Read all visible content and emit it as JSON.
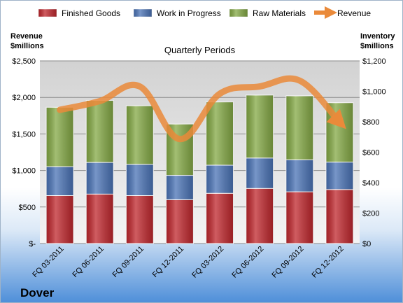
{
  "chart_data": {
    "type": "bar",
    "stacked": true,
    "company": "Dover",
    "subtitle": "Quarterly Periods",
    "ylabel_left": [
      "Revenue",
      "$millions"
    ],
    "ylabel_right": [
      "Inventory",
      "$millions"
    ],
    "categories": [
      "FQ 03-2011",
      "FQ 06-2011",
      "FQ 09-2011",
      "FQ 12-2011",
      "FQ 03-2012",
      "FQ 06-2012",
      "FQ 09-2012",
      "FQ 12-2012"
    ],
    "left_axis": {
      "min": 0,
      "max": 2500,
      "ticks": [
        "$-",
        "$500",
        "$1,000",
        "$1,500",
        "$2,000",
        "$2,500"
      ]
    },
    "right_axis": {
      "min": 0,
      "max": 1200,
      "ticks": [
        "$0",
        "$200",
        "$400",
        "$600",
        "$800",
        "$1,000",
        "$1,200"
      ]
    },
    "series": [
      {
        "name": "Finished Goods",
        "axis": "right",
        "color": "#c0272d",
        "values": [
          315,
          325,
          315,
          288,
          330,
          362,
          340,
          355
        ]
      },
      {
        "name": "Work in Progress",
        "axis": "right",
        "color": "#4a73b6",
        "values": [
          190,
          208,
          205,
          160,
          185,
          200,
          210,
          180
        ]
      },
      {
        "name": "Raw Materials",
        "axis": "right",
        "color": "#84a945",
        "values": [
          390,
          407,
          385,
          337,
          415,
          413,
          420,
          390
        ]
      }
    ],
    "line": {
      "name": "Revenue",
      "axis": "left",
      "color": "#ea8a3a",
      "values": [
        1830,
        1950,
        2150,
        1430,
        2050,
        2150,
        2230,
        1660
      ]
    },
    "legend_position": "top",
    "grid": true
  }
}
